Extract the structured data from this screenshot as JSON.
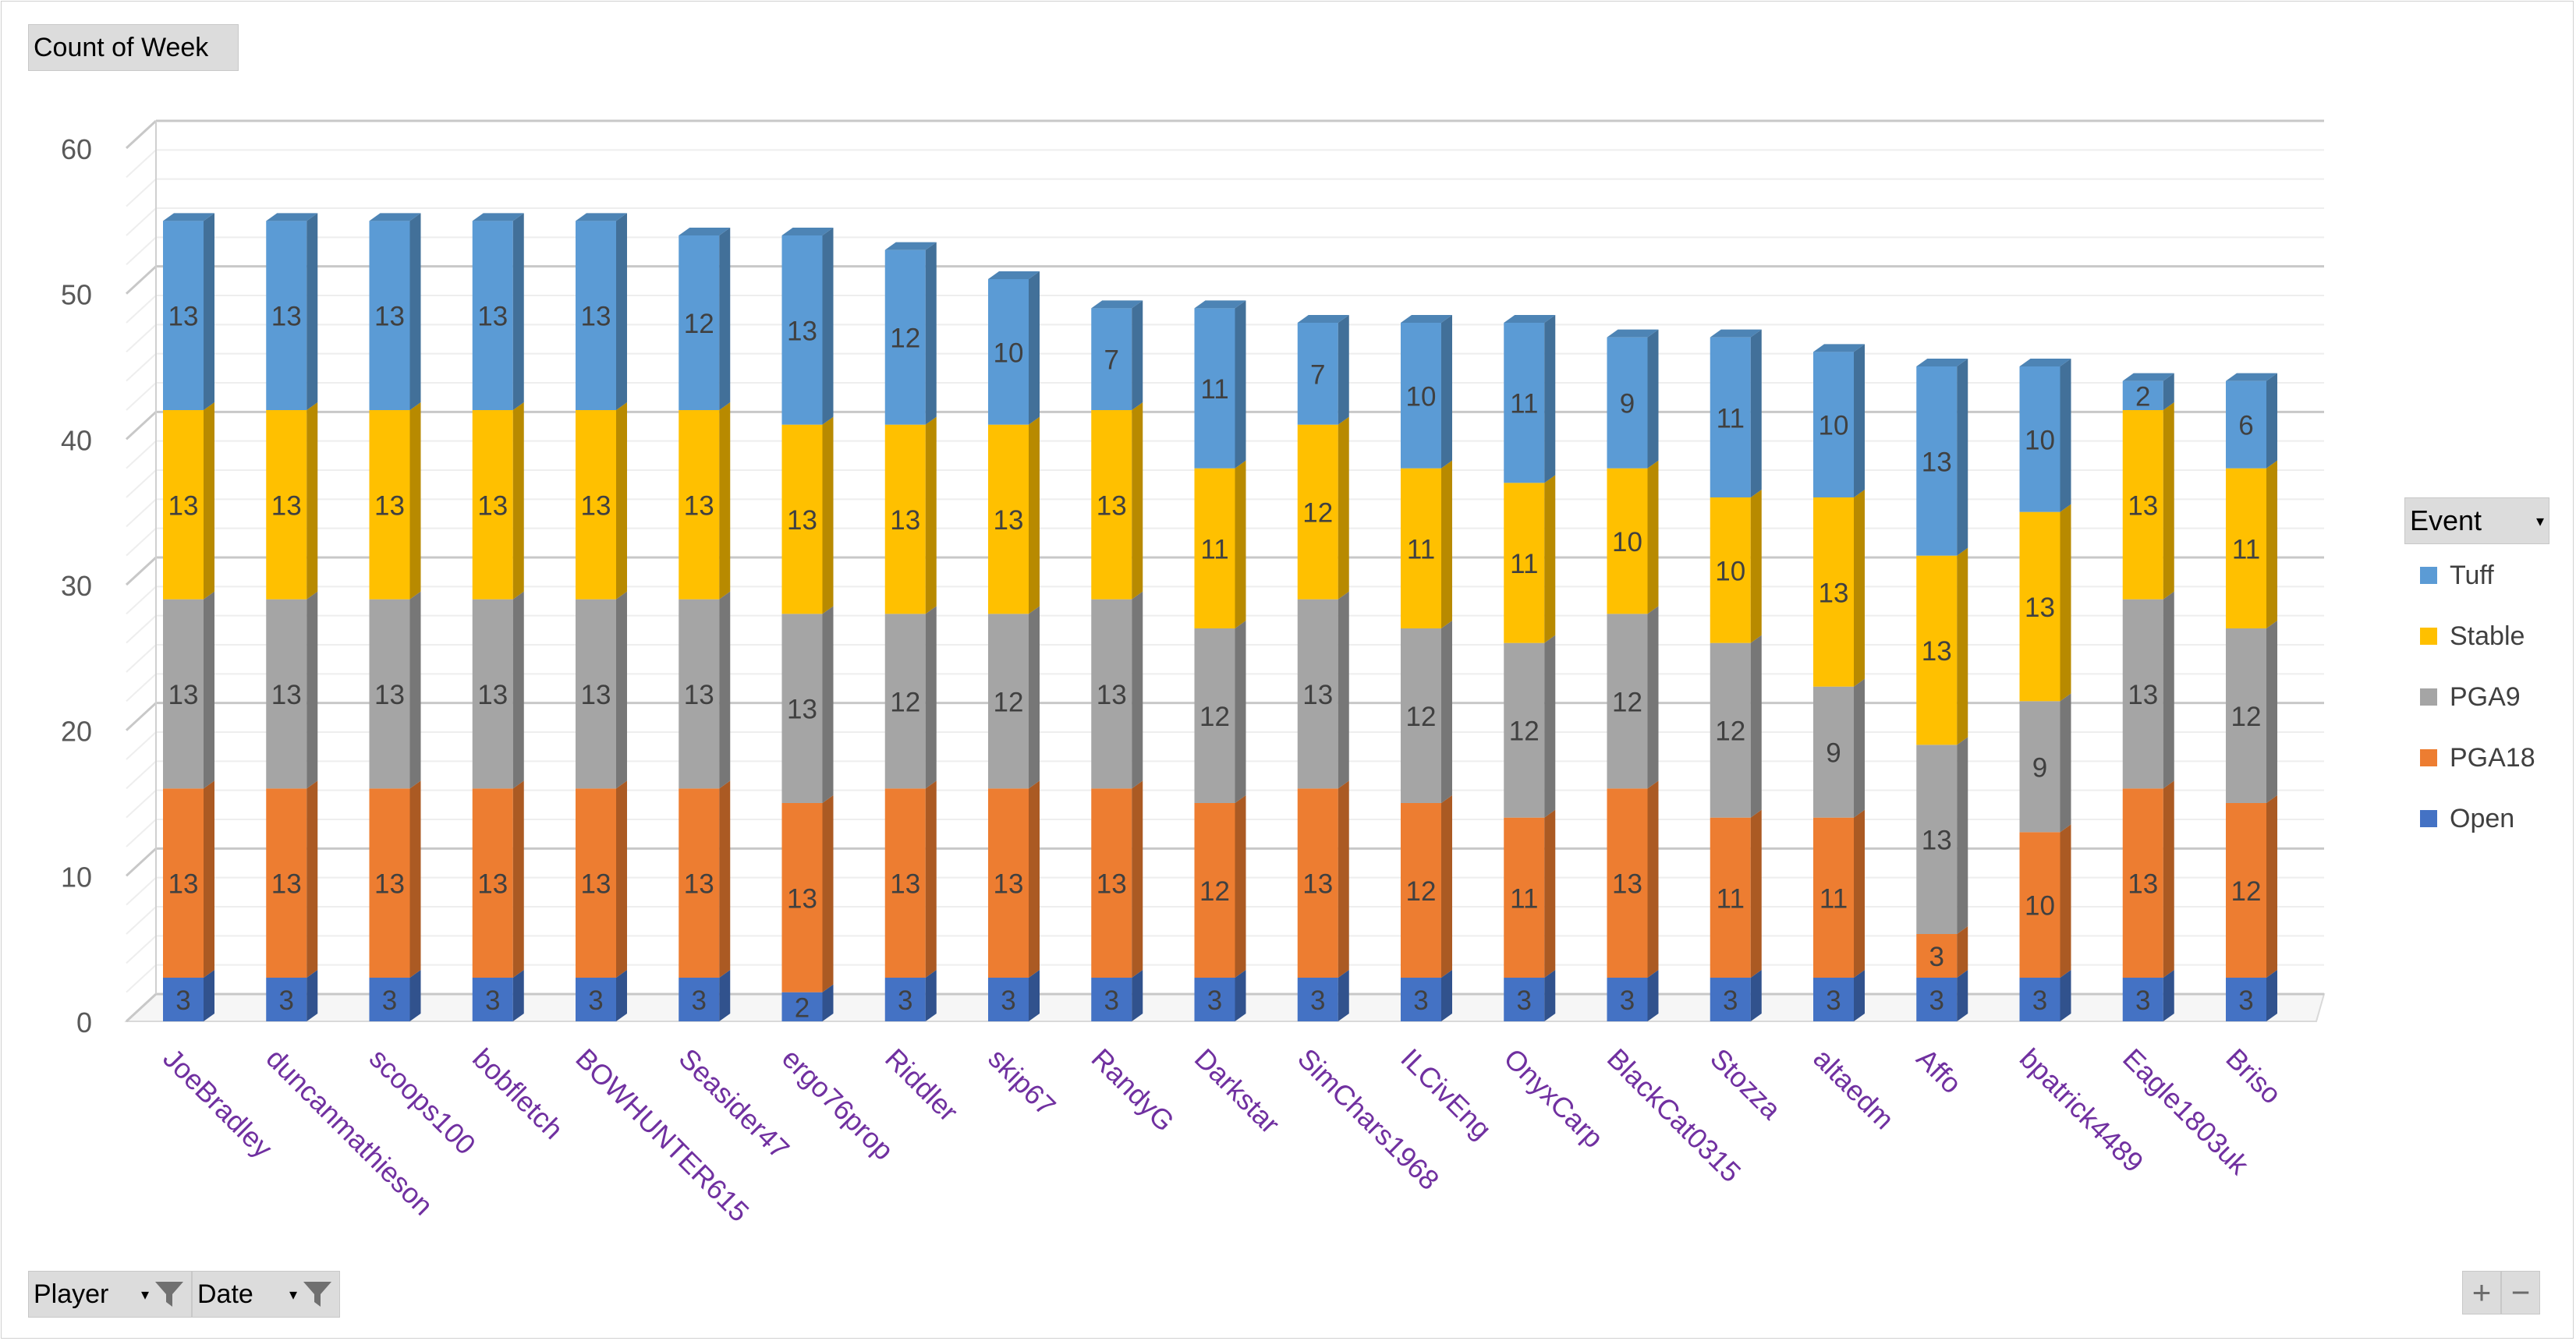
{
  "pivot": {
    "value_field": "Count of Week",
    "row_filters": [
      {
        "label": "Player",
        "filtered": true
      },
      {
        "label": "Date",
        "filtered": true
      }
    ],
    "legend_field": "Event",
    "zoom_in": "+",
    "zoom_out": "−"
  },
  "colors": {
    "Open": "#4472c4",
    "PGA18": "#ed7d31",
    "PGA9": "#a5a5a5",
    "Stable": "#ffc000",
    "Tuff": "#5b9bd5",
    "category_label": "#7030a0",
    "axis_label": "#595959"
  },
  "chart_data": {
    "type": "bar",
    "stacked": true,
    "style": "3d-column",
    "title": "",
    "xlabel": "",
    "ylabel": "",
    "ylim": [
      0,
      60
    ],
    "yticks": [
      0,
      10,
      20,
      30,
      40,
      50,
      60
    ],
    "legend_position": "right",
    "legend_order": [
      "Tuff",
      "Stable",
      "PGA9",
      "PGA18",
      "Open"
    ],
    "categories": [
      "JoeBradley",
      "duncanmathieson",
      "scoops100",
      "bobfletch",
      "BOWHUNTER615",
      "Seasider47",
      "ergo76prop",
      "Riddler",
      "skip67",
      "RandyG",
      "Darkstar",
      "SimChars1968",
      "ILCivEng",
      "OnyxCarp",
      "BlackCat0315",
      "Stozza",
      "altaedm",
      "Affo",
      "bpatrick4489",
      "Eagle1803uk",
      "Briso"
    ],
    "series": [
      {
        "name": "Open",
        "values": [
          3,
          3,
          3,
          3,
          3,
          3,
          2,
          3,
          3,
          3,
          3,
          3,
          3,
          3,
          3,
          3,
          3,
          3,
          3,
          3,
          3
        ]
      },
      {
        "name": "PGA18",
        "values": [
          13,
          13,
          13,
          13,
          13,
          13,
          13,
          13,
          13,
          13,
          12,
          13,
          12,
          11,
          13,
          11,
          11,
          3,
          10,
          13,
          12
        ]
      },
      {
        "name": "PGA9",
        "values": [
          13,
          13,
          13,
          13,
          13,
          13,
          13,
          12,
          12,
          13,
          12,
          13,
          12,
          12,
          12,
          12,
          9,
          13,
          9,
          13,
          12
        ]
      },
      {
        "name": "Stable",
        "values": [
          13,
          13,
          13,
          13,
          13,
          13,
          13,
          13,
          13,
          13,
          11,
          12,
          11,
          11,
          10,
          10,
          13,
          13,
          13,
          13,
          11
        ]
      },
      {
        "name": "Tuff",
        "values": [
          13,
          13,
          13,
          13,
          13,
          12,
          13,
          12,
          10,
          7,
          11,
          7,
          10,
          11,
          9,
          11,
          10,
          13,
          10,
          2,
          6
        ]
      }
    ]
  }
}
